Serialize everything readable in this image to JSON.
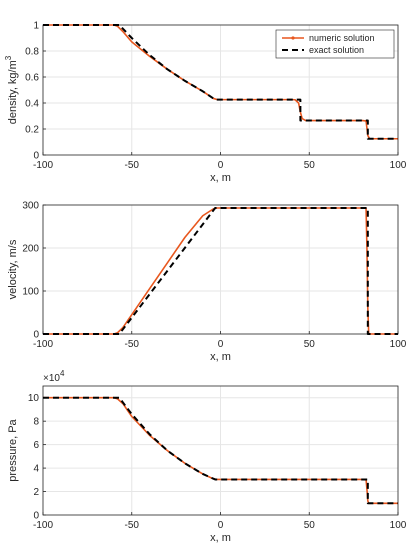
{
  "legend": {
    "numeric_label": "numeric solution",
    "exact_label": "exact solution",
    "numeric_color": "#e8571e",
    "exact_color": "#000000",
    "placement": "top-right of first panel"
  },
  "chart_data": [
    {
      "type": "line",
      "xlabel": "x, m",
      "ylabel": "density, kg/m",
      "ylabel_superscript": "3",
      "xlim": [
        -100,
        100
      ],
      "ylim": [
        0,
        1
      ],
      "xticks": [
        -100,
        -50,
        0,
        50,
        100
      ],
      "yticks": [
        0,
        0.2,
        0.4,
        0.6,
        0.8,
        1
      ],
      "ytick_labels": [
        "0",
        "0.2",
        "0.4",
        "0.6",
        "0.8",
        "1"
      ],
      "grid": true,
      "series": [
        {
          "name": "numeric solution",
          "x": [
            -100,
            -60,
            -58,
            -55,
            -50,
            -40,
            -30,
            -20,
            -10,
            -4,
            -2,
            0,
            40,
            42,
            44,
            45,
            46,
            48,
            80,
            82,
            83,
            84,
            100
          ],
          "y": [
            1,
            1,
            0.99,
            0.95,
            0.87,
            0.76,
            0.66,
            0.57,
            0.49,
            0.435,
            0.427,
            0.426,
            0.426,
            0.425,
            0.4,
            0.33,
            0.28,
            0.265,
            0.265,
            0.262,
            0.15,
            0.125,
            0.125
          ]
        },
        {
          "name": "exact solution",
          "x": [
            -100,
            -57,
            -50,
            -40,
            -30,
            -20,
            -10,
            -3,
            45,
            45,
            83,
            83,
            100
          ],
          "y": [
            1,
            1,
            0.9,
            0.77,
            0.66,
            0.57,
            0.49,
            0.426,
            0.426,
            0.265,
            0.265,
            0.125,
            0.125
          ]
        }
      ]
    },
    {
      "type": "line",
      "xlabel": "x, m",
      "ylabel": "velocity, m/s",
      "xlim": [
        -100,
        100
      ],
      "ylim": [
        0,
        300
      ],
      "xticks": [
        -100,
        -50,
        0,
        50,
        100
      ],
      "yticks": [
        0,
        100,
        200,
        300
      ],
      "ytick_labels": [
        "0",
        "100",
        "200",
        "300"
      ],
      "grid": true,
      "series": [
        {
          "name": "numeric solution",
          "x": [
            -100,
            -60,
            -58,
            -55,
            -50,
            -40,
            -30,
            -20,
            -10,
            -4,
            -2,
            82,
            82.5,
            83,
            83.5,
            100
          ],
          "y": [
            0,
            0,
            3,
            15,
            45,
            105,
            165,
            225,
            275,
            291,
            293,
            293,
            200,
            60,
            0,
            0
          ]
        },
        {
          "name": "exact solution",
          "x": [
            -100,
            -57,
            -3,
            83,
            83,
            100
          ],
          "y": [
            0,
            0,
            293,
            293,
            0,
            0
          ]
        }
      ]
    },
    {
      "type": "line",
      "xlabel": "x, m",
      "ylabel": "pressure, Pa",
      "yscale_label": "×10",
      "yscale_exponent": "4",
      "xlim": [
        -100,
        100
      ],
      "ylim": [
        0,
        110000
      ],
      "xticks": [
        -100,
        -50,
        0,
        50,
        100
      ],
      "yticks": [
        0,
        20000,
        40000,
        60000,
        80000,
        100000
      ],
      "ytick_labels": [
        "0",
        "2",
        "4",
        "6",
        "8",
        "10"
      ],
      "grid": true,
      "series": [
        {
          "name": "numeric solution",
          "x": [
            -100,
            -60,
            -58,
            -55,
            -50,
            -40,
            -30,
            -20,
            -10,
            -4,
            -2,
            82,
            82.5,
            83,
            83.5,
            100
          ],
          "y": [
            100000,
            100000,
            99000,
            95000,
            84000,
            68000,
            55000,
            44000,
            35000,
            30800,
            30300,
            30300,
            22000,
            12000,
            10000,
            10000
          ]
        },
        {
          "name": "exact solution",
          "x": [
            -100,
            -57,
            -50,
            -40,
            -30,
            -20,
            -10,
            -3,
            83,
            83,
            100
          ],
          "y": [
            100000,
            100000,
            86000,
            69000,
            55000,
            44000,
            35000,
            30300,
            30300,
            10000,
            10000
          ]
        }
      ]
    }
  ]
}
